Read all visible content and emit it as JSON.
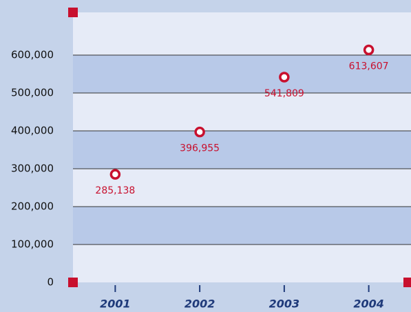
{
  "chart_data": {
    "type": "scatter",
    "categories": [
      "2001",
      "2002",
      "2003",
      "2004"
    ],
    "values": [
      285138,
      396955,
      541809,
      613607
    ],
    "value_labels": [
      "285,138",
      "396,955",
      "541,809",
      "613,607"
    ],
    "color": "#c8102e",
    "ylim": [
      0,
      700000
    ],
    "yticks": [
      0,
      {
        "value": 100000,
        "label": "100,000"
      },
      {
        "value": 200000,
        "label": "200,000"
      },
      {
        "value": 300000,
        "label": "300,000"
      },
      {
        "value": 400000,
        "label": "400,000"
      },
      {
        "value": 500000,
        "label": "500,000"
      },
      {
        "value": 600000,
        "label": "600,000"
      }
    ],
    "grid": true
  }
}
